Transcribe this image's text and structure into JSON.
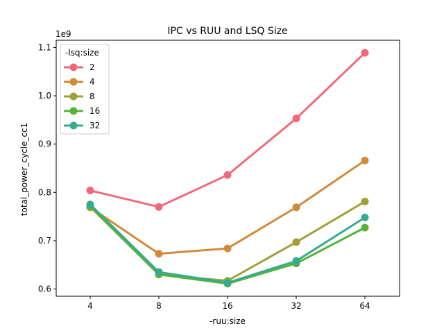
{
  "chart_data": {
    "type": "line",
    "title": "IPC vs RUU and LSQ Size",
    "xlabel": "-ruu:size",
    "ylabel": "total_power_cycle_cc1",
    "y_offset_label": "1e9",
    "categories": [
      "4",
      "8",
      "16",
      "32",
      "64"
    ],
    "ylim": [
      0.585,
      1.115
    ],
    "yticks": [
      0.6,
      0.7,
      0.8,
      0.9,
      1.0,
      1.1
    ],
    "ytick_labels": [
      "0.6",
      "0.7",
      "0.8",
      "0.9",
      "1.0",
      "1.1"
    ],
    "legend_title": "-lsq:size",
    "legend_position": "top-left",
    "grid": false,
    "series": [
      {
        "name": "2",
        "color": "#f0697a",
        "values": [
          0.804,
          0.77,
          0.836,
          0.953,
          1.089
        ]
      },
      {
        "name": "4",
        "color": "#d08b3a",
        "values": [
          0.769,
          0.673,
          0.684,
          0.769,
          0.866
        ]
      },
      {
        "name": "8",
        "color": "#a0a03a",
        "values": [
          0.77,
          0.63,
          0.617,
          0.697,
          0.781
        ]
      },
      {
        "name": "16",
        "color": "#55b33a",
        "values": [
          0.772,
          0.63,
          0.611,
          0.653,
          0.727
        ]
      },
      {
        "name": "32",
        "color": "#36ab8d",
        "values": [
          0.775,
          0.635,
          0.613,
          0.658,
          0.748
        ]
      }
    ]
  }
}
